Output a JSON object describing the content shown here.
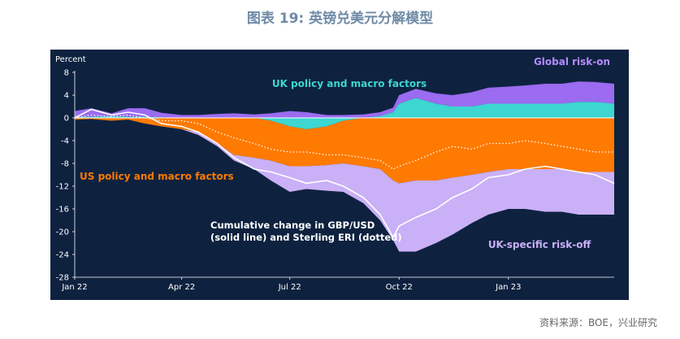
{
  "page": {
    "title": "图表 19: 英镑兑美元分解模型",
    "source": "资料来源：BOE，兴业研究"
  },
  "chart_data": {
    "type": "area",
    "title": "",
    "ylabel": "Percent",
    "xlabel": "",
    "ylim": [
      -28,
      8
    ],
    "yticks": [
      8,
      4,
      0,
      -4,
      -8,
      -12,
      -16,
      -20,
      -24,
      -28
    ],
    "x_start": "2022-01-01",
    "x_end": "2023-03-31",
    "xticks": [
      {
        "label": "Jan 22",
        "date": "2022-01-01"
      },
      {
        "label": "Apr 22",
        "date": "2022-04-01"
      },
      {
        "label": "Jul 22",
        "date": "2022-07-01"
      },
      {
        "label": "Oct 22",
        "date": "2022-10-01"
      },
      {
        "label": "Jan 23",
        "date": "2023-01-01"
      }
    ],
    "colors": {
      "global": "#9b6bf0",
      "uk_policy": "#3dd6d0",
      "us_policy": "#ff7a00",
      "uk_riskoff": "#c9b0f7",
      "gbpusd": "#ffffff",
      "eri": "#ffffff"
    },
    "x": [
      "2022-01-01",
      "2022-01-15",
      "2022-02-01",
      "2022-02-15",
      "2022-03-01",
      "2022-03-15",
      "2022-04-01",
      "2022-04-15",
      "2022-05-01",
      "2022-05-15",
      "2022-06-01",
      "2022-06-15",
      "2022-07-01",
      "2022-07-15",
      "2022-08-01",
      "2022-08-15",
      "2022-09-01",
      "2022-09-15",
      "2022-09-26",
      "2022-10-01",
      "2022-10-15",
      "2022-11-01",
      "2022-11-15",
      "2022-12-01",
      "2022-12-15",
      "2023-01-01",
      "2023-01-15",
      "2023-02-01",
      "2023-02-15",
      "2023-03-01",
      "2023-03-15",
      "2023-03-31"
    ],
    "series": [
      {
        "name": "Global risk-on",
        "key": "global",
        "values": [
          1.0,
          1.5,
          0.5,
          1.5,
          1.5,
          0.8,
          0.5,
          0.5,
          0.7,
          0.8,
          0.6,
          0.8,
          1.2,
          1.0,
          0.5,
          0.5,
          0.6,
          0.7,
          0.8,
          1.5,
          1.6,
          1.8,
          2.0,
          2.5,
          2.8,
          3.0,
          3.2,
          3.5,
          3.5,
          3.6,
          3.5,
          3.5
        ]
      },
      {
        "name": "UK policy and macro factors",
        "key": "uk_policy",
        "values": [
          0.2,
          0.2,
          0.3,
          0.2,
          0.2,
          0.1,
          0,
          0,
          0,
          0,
          0,
          -0.5,
          -1.5,
          -2.0,
          -1.5,
          -0.5,
          0,
          0.3,
          1.0,
          2.5,
          3.5,
          2.5,
          2.0,
          2.0,
          2.5,
          2.5,
          2.5,
          2.5,
          2.5,
          2.8,
          2.8,
          2.5
        ]
      },
      {
        "name": "US policy and macro factors",
        "key": "us_policy",
        "values": [
          -0.3,
          -0.2,
          -0.5,
          -0.3,
          -1.0,
          -1.5,
          -2.0,
          -2.5,
          -4.5,
          -6.5,
          -7.0,
          -7.0,
          -7.0,
          -6.5,
          -6.8,
          -7.5,
          -8.5,
          -9.0,
          -11.0,
          -11.5,
          -11.0,
          -11.0,
          -10.5,
          -10.0,
          -9.5,
          -9.0,
          -9.0,
          -9.0,
          -9.0,
          -9.5,
          -9.5,
          -9.5
        ]
      },
      {
        "name": "UK-specific risk-off",
        "key": "uk_riskoff",
        "values": [
          0,
          0,
          0,
          0,
          0,
          0,
          0,
          -0.5,
          -0.5,
          -1.0,
          -2.0,
          -3.5,
          -4.5,
          -4.0,
          -4.5,
          -5.0,
          -6.5,
          -9.0,
          -10.5,
          -12.0,
          -12.5,
          -11.0,
          -10.0,
          -8.5,
          -7.5,
          -7.0,
          -7.0,
          -7.5,
          -7.5,
          -7.5,
          -7.5,
          -7.5
        ]
      },
      {
        "name": "Cumulative change in GBP/USD",
        "key": "gbpusd",
        "values": [
          0,
          1.5,
          0.5,
          1.0,
          0.5,
          -1.0,
          -1.5,
          -2.5,
          -4.5,
          -7.0,
          -9.0,
          -9.5,
          -10.5,
          -11.5,
          -11.0,
          -12.0,
          -14.0,
          -17.0,
          -21.0,
          -19.0,
          -17.5,
          -16.0,
          -14.0,
          -12.5,
          -10.5,
          -10.0,
          -9.0,
          -8.5,
          -9.0,
          -9.5,
          -10.0,
          -11.5
        ]
      },
      {
        "name": "Sterling ERI",
        "key": "eri",
        "values": [
          0,
          0.5,
          0.2,
          0.5,
          0,
          -0.5,
          -0.5,
          -1.0,
          -2.5,
          -3.5,
          -4.5,
          -5.5,
          -6.0,
          -6.0,
          -6.5,
          -6.5,
          -7.0,
          -7.5,
          -9.0,
          -8.5,
          -7.5,
          -6.0,
          -5.0,
          -5.5,
          -4.5,
          -4.5,
          -4.0,
          -4.5,
          -5.0,
          -5.5,
          -6.0,
          -6.0
        ]
      }
    ],
    "annotations": {
      "global": "Global risk-on",
      "uk_policy": "UK policy and macro factors",
      "us_policy": "US policy and macro factors",
      "uk_riskoff": "UK-specific risk-off",
      "lines_line1": "Cumulative change in GBP/USD",
      "lines_line2": "(solid line) and Sterling ERI (dotted)"
    },
    "grid": false,
    "legend": "inline"
  }
}
